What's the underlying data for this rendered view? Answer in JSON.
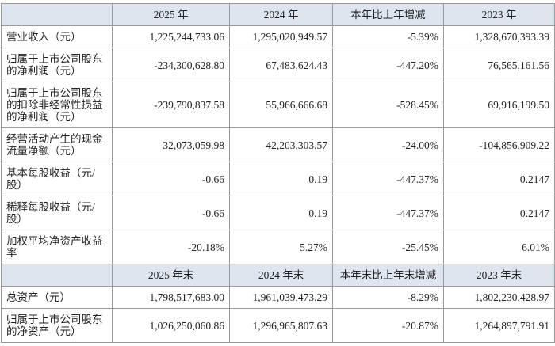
{
  "table": {
    "sections": [
      {
        "header": [
          "2025 年",
          "2024 年",
          "本年比上年增减",
          "2023 年"
        ],
        "rows": [
          [
            "营业收入（元）",
            "1,225,244,733.06",
            "1,295,020,949.57",
            "-5.39%",
            "1,328,670,393.39"
          ],
          [
            "归属于上市公司股东的净利润（元）",
            "-234,300,628.80",
            "67,483,624.43",
            "-447.20%",
            "76,565,161.56"
          ],
          [
            "归属于上市公司股东的扣除非经常性损益的净利润（元）",
            "-239,790,837.58",
            "55,966,666.68",
            "-528.45%",
            "69,916,199.50"
          ],
          [
            "经营活动产生的现金流量净额（元）",
            "32,073,059.98",
            "42,203,303.57",
            "-24.00%",
            "-104,856,909.22"
          ],
          [
            "基本每股收益（元/股）",
            "-0.66",
            "0.19",
            "-447.37%",
            "0.2147"
          ],
          [
            "稀释每股收益（元/股）",
            "-0.66",
            "0.19",
            "-447.37%",
            "0.2147"
          ],
          [
            "加权平均净资产收益率",
            "-20.18%",
            "5.27%",
            "-25.45%",
            "6.01%"
          ]
        ]
      },
      {
        "header": [
          "2025 年末",
          "2024 年末",
          "本年末比上年末增减",
          "2023 年末"
        ],
        "rows": [
          [
            "总资产（元）",
            "1,798,517,683.00",
            "1,961,039,473.29",
            "-8.29%",
            "1,802,230,428.97"
          ],
          [
            "归属于上市公司股东的净资产（元）",
            "1,026,250,060.86",
            "1,296,965,807.63",
            "-20.87%",
            "1,264,897,791.91"
          ]
        ]
      }
    ]
  }
}
